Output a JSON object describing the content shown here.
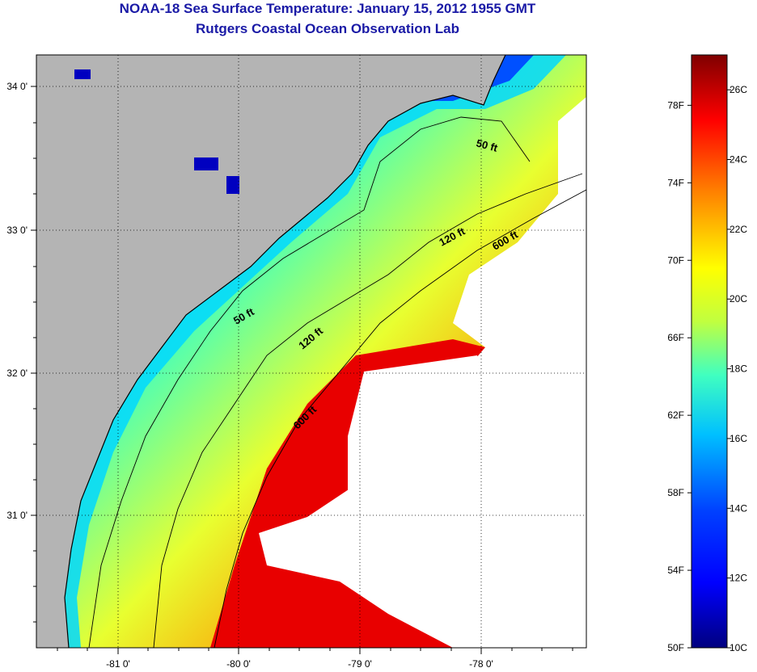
{
  "title": "NOAA-18 Sea Surface Temperature:  January 15, 2012 1955 GMT",
  "subtitle": "Rutgers Coastal Ocean Observation Lab",
  "map": {
    "lat_ticks": [
      "34 0'",
      "33 0'",
      "32 0'",
      "31 0'"
    ],
    "lon_ticks": [
      "-81 0'",
      "-80 0'",
      "-79 0'",
      "-78 0'"
    ],
    "contours": [
      {
        "label": "50 ft"
      },
      {
        "label": "50 ft"
      },
      {
        "label": "120 ft"
      },
      {
        "label": "120 ft"
      },
      {
        "label": "600 ft"
      },
      {
        "label": "600 ft"
      }
    ],
    "colors": {
      "land": "#b4b4b4",
      "cloud": "#ffffff"
    }
  },
  "colorbar": {
    "fahrenheit_ticks": [
      "78F",
      "74F",
      "70F",
      "66F",
      "62F",
      "58F",
      "54F",
      "50F"
    ],
    "celsius_ticks": [
      "26C",
      "24C",
      "22C",
      "20C",
      "18C",
      "16C",
      "14C",
      "12C",
      "10C"
    ],
    "min_f": 50,
    "max_f": 80.6
  }
}
